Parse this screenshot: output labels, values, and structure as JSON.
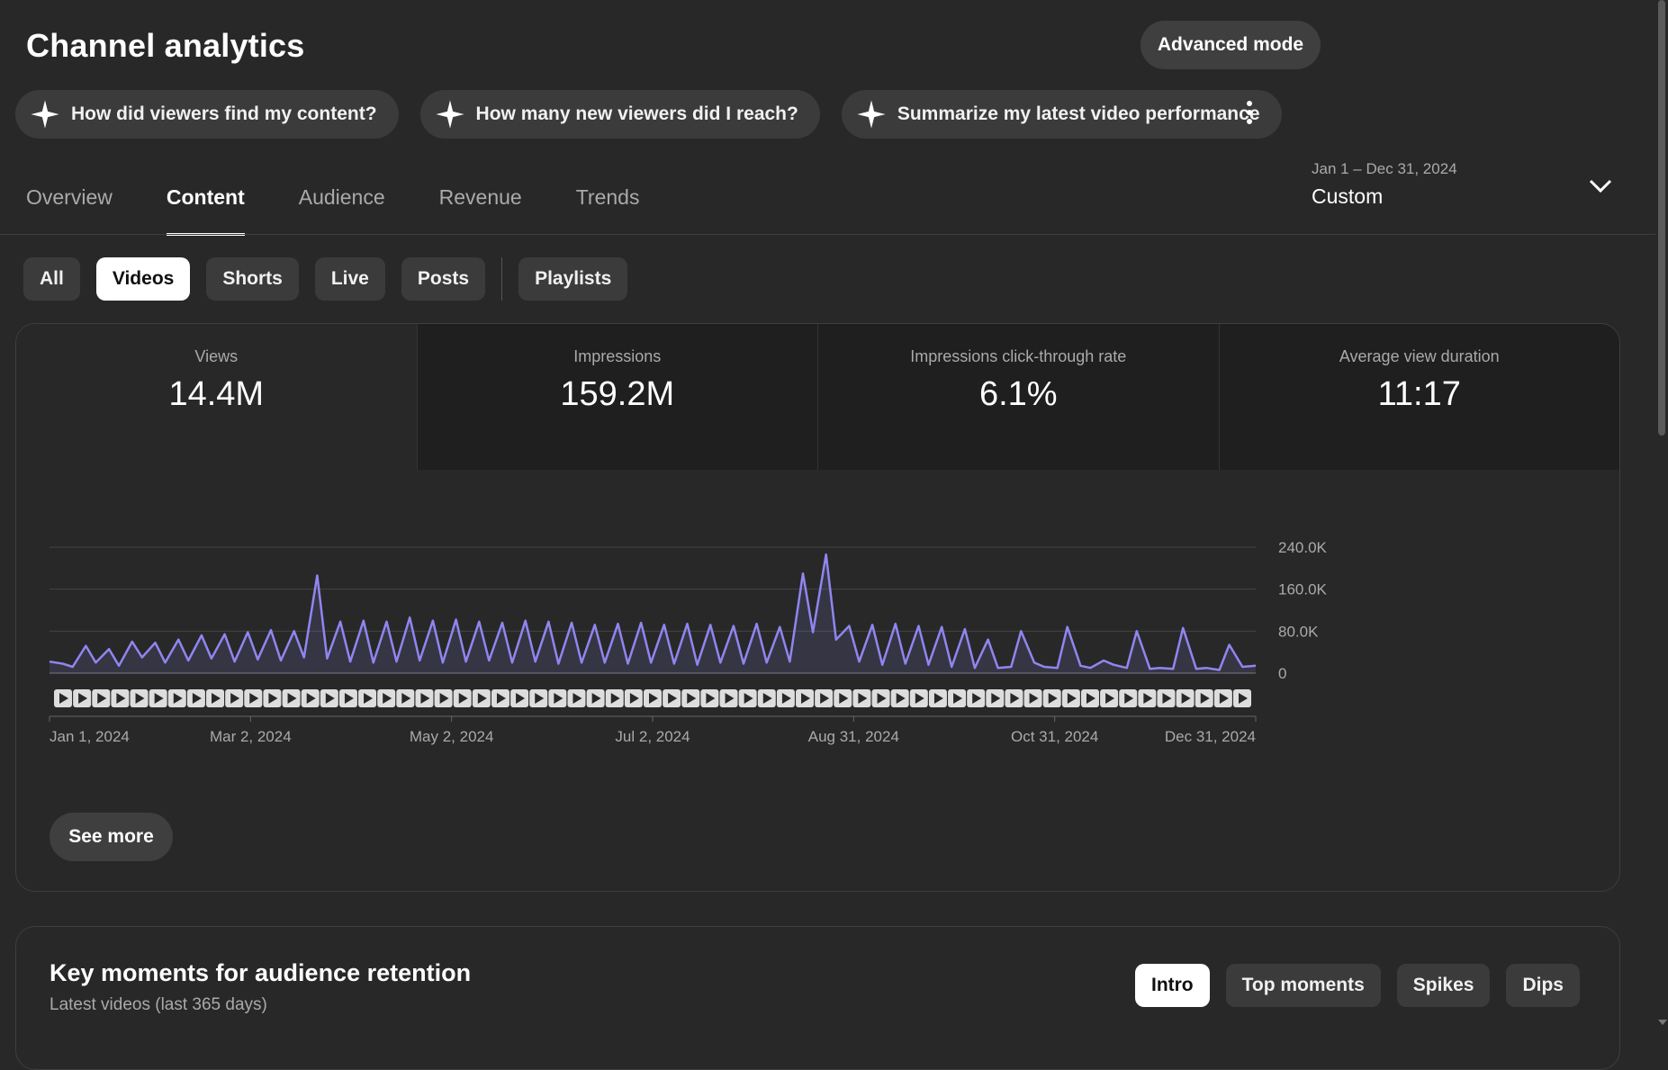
{
  "header": {
    "title": "Channel analytics",
    "advanced_mode_label": "Advanced mode"
  },
  "suggestion_chips": [
    {
      "icon": "sparkle-icon",
      "label": "How did viewers find my content?"
    },
    {
      "icon": "sparkle-icon",
      "label": "How many new viewers did I reach?"
    },
    {
      "icon": "sparkle-icon",
      "label": "Summarize my latest video performance"
    }
  ],
  "tabs": [
    {
      "label": "Overview",
      "active": false
    },
    {
      "label": "Content",
      "active": true
    },
    {
      "label": "Audience",
      "active": false
    },
    {
      "label": "Revenue",
      "active": false
    },
    {
      "label": "Trends",
      "active": false
    }
  ],
  "date_picker": {
    "range": "Jan 1 – Dec 31, 2024",
    "label": "Custom"
  },
  "content_filters": [
    {
      "label": "All",
      "selected": false
    },
    {
      "label": "Videos",
      "selected": true
    },
    {
      "label": "Shorts",
      "selected": false
    },
    {
      "label": "Live",
      "selected": false
    },
    {
      "label": "Posts",
      "selected": false
    },
    {
      "label": "Playlists",
      "selected": false
    }
  ],
  "metrics": [
    {
      "label": "Views",
      "value": "14.4M",
      "active": true
    },
    {
      "label": "Impressions",
      "value": "159.2M",
      "active": false
    },
    {
      "label": "Impressions click-through rate",
      "value": "6.1%",
      "active": false
    },
    {
      "label": "Average view duration",
      "value": "11:17",
      "active": false
    }
  ],
  "see_more_label": "See more",
  "chart_data": {
    "type": "line",
    "x_range": [
      "2024-01-01",
      "2024-12-31"
    ],
    "ylim": [
      0,
      240000
    ],
    "y_ticks": [
      "240.0K",
      "160.0K",
      "80.0K",
      "0"
    ],
    "x_ticks": [
      "Jan 1, 2024",
      "Mar 2, 2024",
      "May 2, 2024",
      "Jul 2, 2024",
      "Aug 31, 2024",
      "Oct 31, 2024",
      "Dec 31, 2024"
    ],
    "grid": true,
    "line_color": "#8f86f0",
    "series": [
      {
        "x": [
          "2024-01-01",
          "2024-01-05",
          "2024-01-08",
          "2024-01-12",
          "2024-01-15",
          "2024-01-19",
          "2024-01-22",
          "2024-01-26",
          "2024-01-29",
          "2024-02-02",
          "2024-02-05",
          "2024-02-09",
          "2024-02-12",
          "2024-02-16",
          "2024-02-19",
          "2024-02-23",
          "2024-02-26",
          "2024-03-01",
          "2024-03-04",
          "2024-03-08",
          "2024-03-11",
          "2024-03-15",
          "2024-03-18",
          "2024-03-22",
          "2024-03-25",
          "2024-03-29",
          "2024-04-01",
          "2024-04-05",
          "2024-04-08",
          "2024-04-12",
          "2024-04-15",
          "2024-04-19",
          "2024-04-22",
          "2024-04-26",
          "2024-04-29",
          "2024-05-03",
          "2024-05-06",
          "2024-05-10",
          "2024-05-13",
          "2024-05-17",
          "2024-05-20",
          "2024-05-24",
          "2024-05-27",
          "2024-05-31",
          "2024-06-03",
          "2024-06-07",
          "2024-06-10",
          "2024-06-14",
          "2024-06-17",
          "2024-06-21",
          "2024-06-24",
          "2024-06-28",
          "2024-07-01",
          "2024-07-05",
          "2024-07-08",
          "2024-07-12",
          "2024-07-15",
          "2024-07-19",
          "2024-07-22",
          "2024-07-26",
          "2024-07-29",
          "2024-08-02",
          "2024-08-05",
          "2024-08-09",
          "2024-08-12",
          "2024-08-16",
          "2024-08-19",
          "2024-08-23",
          "2024-08-26",
          "2024-08-30",
          "2024-09-02",
          "2024-09-06",
          "2024-09-09",
          "2024-09-13",
          "2024-09-16",
          "2024-09-20",
          "2024-09-23",
          "2024-09-27",
          "2024-09-30",
          "2024-10-04",
          "2024-10-07",
          "2024-10-11",
          "2024-10-14",
          "2024-10-18",
          "2024-10-21",
          "2024-10-25",
          "2024-10-28",
          "2024-11-01",
          "2024-11-04",
          "2024-11-08",
          "2024-11-11",
          "2024-11-15",
          "2024-11-18",
          "2024-11-22",
          "2024-11-25",
          "2024-11-29",
          "2024-12-02",
          "2024-12-06",
          "2024-12-09",
          "2024-12-13",
          "2024-12-16",
          "2024-12-20",
          "2024-12-23",
          "2024-12-27",
          "2024-12-31"
        ],
        "values": [
          22000,
          18000,
          12000,
          52000,
          20000,
          46000,
          14000,
          60000,
          30000,
          58000,
          20000,
          64000,
          24000,
          72000,
          28000,
          74000,
          22000,
          78000,
          26000,
          82000,
          24000,
          80000,
          30000,
          186000,
          28000,
          98000,
          22000,
          100000,
          20000,
          98000,
          22000,
          106000,
          24000,
          100000,
          20000,
          102000,
          22000,
          98000,
          24000,
          96000,
          20000,
          100000,
          22000,
          98000,
          18000,
          96000,
          20000,
          92000,
          20000,
          94000,
          18000,
          96000,
          20000,
          92000,
          18000,
          94000,
          16000,
          92000,
          20000,
          90000,
          18000,
          94000,
          20000,
          88000,
          22000,
          190000,
          78000,
          226000,
          64000,
          90000,
          22000,
          92000,
          16000,
          94000,
          18000,
          90000,
          16000,
          88000,
          12000,
          84000,
          10000,
          64000,
          10000,
          12000,
          80000,
          20000,
          12000,
          10000,
          88000,
          14000,
          10000,
          24000,
          16000,
          10000,
          80000,
          8000,
          10000,
          8000,
          86000,
          8000,
          10000,
          6000,
          54000,
          12000,
          14000
        ]
      }
    ],
    "video_markers_count": 63
  },
  "key_moments": {
    "title": "Key moments for audience retention",
    "subtitle": "Latest videos (last 365 days)",
    "chips": [
      {
        "label": "Intro",
        "selected": true
      },
      {
        "label": "Top moments",
        "selected": false
      },
      {
        "label": "Spikes",
        "selected": false
      },
      {
        "label": "Dips",
        "selected": false
      }
    ]
  }
}
